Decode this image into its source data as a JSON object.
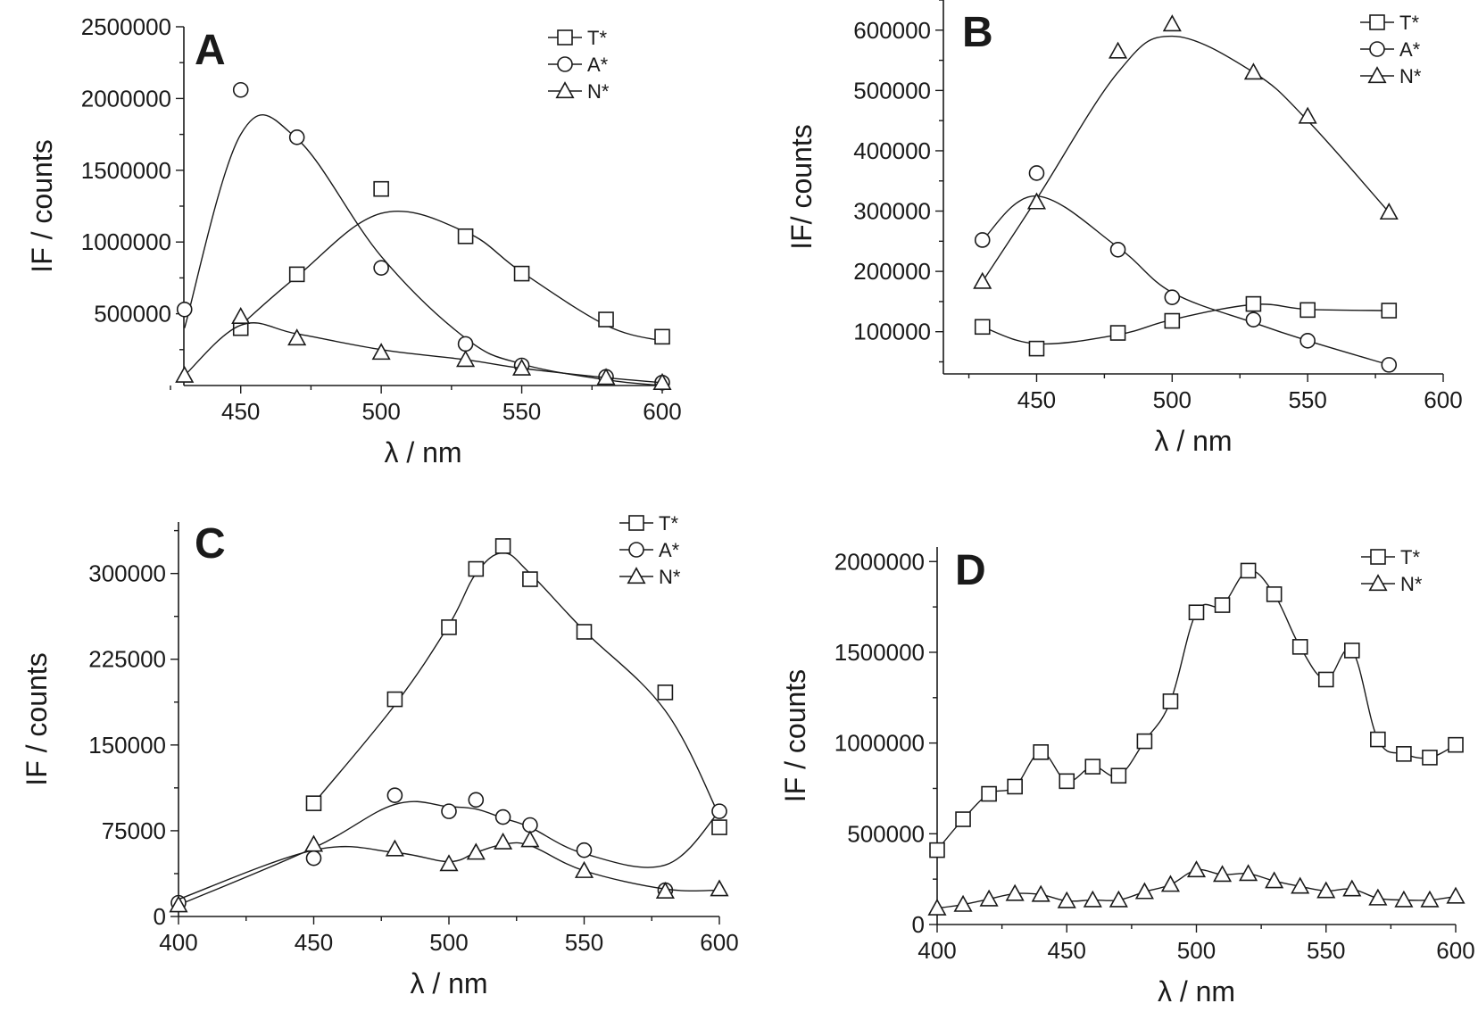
{
  "chart_data": [
    {
      "type": "scatter",
      "panel": "A",
      "xlabel": "λ / nm",
      "ylabel": "IF / counts",
      "xlim": [
        425,
        600
      ],
      "ylim": [
        0,
        2500000
      ],
      "xticks": [
        450,
        500,
        550,
        600
      ],
      "yticks": [
        500000,
        1000000,
        1500000,
        2000000,
        2500000
      ],
      "legend": [
        "T*",
        "A*",
        "N*"
      ],
      "legend_position": "top-right",
      "series": [
        {
          "name": "T*",
          "marker": "square",
          "x": [
            450,
            470,
            500,
            530,
            550,
            580,
            600
          ],
          "y": [
            400000,
            775000,
            1370000,
            1040000,
            780000,
            460000,
            340000
          ],
          "fit_y": [
            420000,
            760000,
            1200000,
            1070000,
            790000,
            420000,
            310000
          ]
        },
        {
          "name": "A*",
          "marker": "circle",
          "x": [
            430,
            450,
            470,
            500,
            530,
            550,
            580,
            600
          ],
          "y": [
            530000,
            2060000,
            1730000,
            820000,
            290000,
            140000,
            60000,
            20000
          ],
          "fit_y": [
            400000,
            1750000,
            1720000,
            900000,
            330000,
            150000,
            40000,
            0
          ]
        },
        {
          "name": "N*",
          "marker": "triangle",
          "x": [
            430,
            450,
            470,
            500,
            530,
            550,
            580,
            600
          ],
          "y": [
            70000,
            480000,
            330000,
            230000,
            180000,
            120000,
            55000,
            20000
          ],
          "fit_y": [
            70000,
            420000,
            360000,
            250000,
            180000,
            120000,
            55000,
            20000
          ]
        }
      ]
    },
    {
      "type": "scatter",
      "panel": "B",
      "xlabel": "λ / nm",
      "ylabel": "IF/ counts",
      "xlim": [
        410,
        600
      ],
      "ylim": [
        30000,
        650000
      ],
      "xticks": [
        450,
        500,
        550,
        600
      ],
      "yticks": [
        100000,
        200000,
        300000,
        400000,
        500000,
        600000
      ],
      "legend": [
        "T*",
        "A*",
        "N*"
      ],
      "legend_position": "top-right",
      "series": [
        {
          "name": "T*",
          "marker": "square",
          "x": [
            430,
            450,
            480,
            500,
            530,
            550,
            580
          ],
          "y": [
            108000,
            72000,
            98000,
            118000,
            146000,
            136000,
            135000
          ],
          "fit_y": [
            108000,
            80000,
            95000,
            120000,
            145000,
            137000,
            135000
          ]
        },
        {
          "name": "A*",
          "marker": "circle",
          "x": [
            430,
            450,
            480,
            500,
            530,
            550,
            580
          ],
          "y": [
            252000,
            363000,
            236000,
            157000,
            120000,
            85000,
            45000
          ],
          "fit_y": [
            252000,
            325000,
            240000,
            165000,
            115000,
            85000,
            45000
          ]
        },
        {
          "name": "N*",
          "marker": "triangle",
          "x": [
            430,
            450,
            480,
            500,
            530,
            550,
            580
          ],
          "y": [
            183000,
            315000,
            565000,
            610000,
            530000,
            457000,
            298000
          ],
          "fit_y": [
            183000,
            320000,
            530000,
            590000,
            530000,
            450000,
            298000
          ]
        }
      ]
    },
    {
      "type": "scatter",
      "panel": "C",
      "xlabel": "λ / nm",
      "ylabel": "IF / counts",
      "xlim": [
        400,
        600
      ],
      "ylim": [
        0,
        345000
      ],
      "xticks": [
        400,
        450,
        500,
        550,
        600
      ],
      "yticks": [
        0,
        75000,
        150000,
        225000,
        300000
      ],
      "legend": [
        "T*",
        "A*",
        "N*"
      ],
      "legend_position": "top-right",
      "series": [
        {
          "name": "T*",
          "marker": "square",
          "x": [
            450,
            480,
            500,
            510,
            520,
            530,
            550,
            580,
            600
          ],
          "y": [
            99000,
            190000,
            253000,
            304000,
            324000,
            295000,
            249000,
            196000,
            78000
          ],
          "fit_y": [
            99000,
            185000,
            255000,
            300000,
            318000,
            300000,
            250000,
            180000,
            88000
          ]
        },
        {
          "name": "A*",
          "marker": "circle",
          "x": [
            400,
            450,
            480,
            500,
            510,
            520,
            530,
            550,
            580,
            600
          ],
          "y": [
            12000,
            51000,
            106000,
            92000,
            102000,
            87000,
            80000,
            58000,
            23000,
            92000
          ],
          "fit_y": [
            10000,
            60000,
            98000,
            96000,
            94000,
            86000,
            78000,
            55000,
            45000,
            92000
          ]
        },
        {
          "name": "N*",
          "marker": "triangle",
          "x": [
            400,
            450,
            480,
            500,
            510,
            520,
            530,
            550,
            580,
            600
          ],
          "y": [
            10000,
            63000,
            59000,
            46000,
            56000,
            65000,
            67000,
            40000,
            22000,
            24000
          ],
          "fit_y": [
            15000,
            58000,
            56000,
            48000,
            56000,
            63000,
            62000,
            40000,
            24000,
            23000
          ]
        }
      ]
    },
    {
      "type": "scatter",
      "panel": "D",
      "xlabel": "λ / nm",
      "ylabel": "IF / counts",
      "xlim": [
        400,
        600
      ],
      "ylim": [
        0,
        2080000
      ],
      "xticks": [
        400,
        450,
        500,
        550,
        600
      ],
      "yticks": [
        0,
        500000,
        1000000,
        1500000,
        2000000
      ],
      "legend": [
        "T*",
        "N*"
      ],
      "legend_position": "top-right",
      "series": [
        {
          "name": "T*",
          "marker": "square",
          "x": [
            400,
            410,
            420,
            430,
            440,
            450,
            460,
            470,
            480,
            490,
            500,
            510,
            520,
            530,
            540,
            550,
            560,
            570,
            580,
            590,
            600
          ],
          "y": [
            410000,
            580000,
            720000,
            760000,
            950000,
            790000,
            870000,
            820000,
            1010000,
            1230000,
            1720000,
            1760000,
            1950000,
            1820000,
            1530000,
            1350000,
            1510000,
            1020000,
            940000,
            920000,
            990000
          ]
        },
        {
          "name": "N*",
          "marker": "triangle",
          "x": [
            400,
            410,
            420,
            430,
            440,
            450,
            460,
            470,
            480,
            490,
            500,
            510,
            520,
            530,
            540,
            550,
            560,
            570,
            580,
            590,
            600
          ],
          "y": [
            90000,
            110000,
            140000,
            170000,
            165000,
            130000,
            135000,
            135000,
            180000,
            220000,
            300000,
            275000,
            280000,
            240000,
            210000,
            185000,
            195000,
            145000,
            135000,
            135000,
            155000
          ]
        }
      ]
    }
  ]
}
